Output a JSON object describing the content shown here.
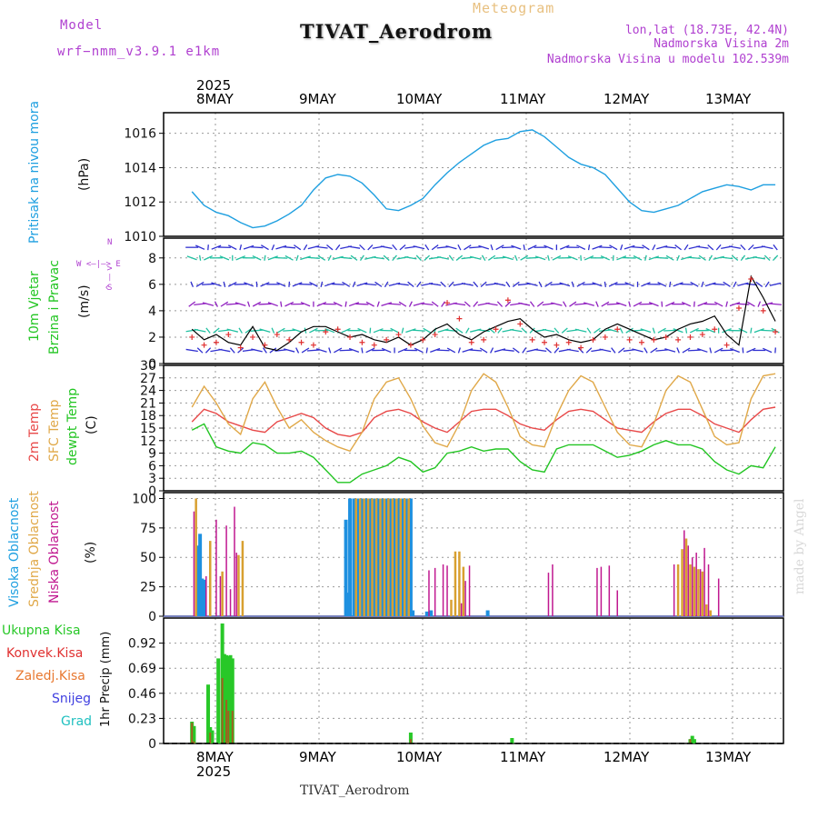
{
  "header": {
    "model_label": "Model",
    "model_name": "wrf−nmm_v3.9.1  e1km",
    "product": "Meteogram",
    "title": "TIVAT_Aerodrom",
    "lonlat": "lon,lat (18.73E, 42.4N)",
    "elev": "Nadmorska Visina 2m",
    "model_elev": "Nadmorska Visina u modelu 102.539m"
  },
  "x_axis": {
    "year": "2025",
    "days": [
      "8MAY",
      "9MAY",
      "10MAY",
      "11MAY",
      "12MAY",
      "13MAY"
    ]
  },
  "footer": {
    "station": "TIVAT_Aerodrom",
    "credit": "made by Angel"
  },
  "panel_labels": {
    "pressure": {
      "name": "Pritisak na nivou mora",
      "unit": "(hPa)"
    },
    "wind": {
      "name1": "10m Vjetar",
      "name2": "Brzina i Pravac",
      "unit": "(m/s)",
      "compass": "W <—|—> E",
      "n": "N",
      "s": "S",
      "arrows": "^ — v"
    },
    "temp": {
      "name1": "2m Temp",
      "name2": "SFC Temp",
      "name3": "dewpt Temp",
      "unit": "(C)"
    },
    "cloud": {
      "name1": "Visoka Oblacnost",
      "name2": "Srednja Oblacnost",
      "name3": "Niska Oblacnost",
      "unit": "(%)"
    },
    "precip": {
      "unit": "1hr Precip (mm)",
      "legend": [
        "Ukupna Kisa",
        "Konvek.Kisa",
        "Zaledj.Kisa",
        "Snijeg",
        "Grad"
      ]
    }
  },
  "colors": {
    "pressure": "#1e9fe0",
    "temp2m": "#e84848",
    "sfc": "#e0a848",
    "dewpt": "#22c522",
    "high": "#1e90e0",
    "mid": "#d8a030",
    "low": "#c01890",
    "rain": "#28c828",
    "konvek": "#e03030",
    "zaledj": "#e87830",
    "snijeg": "#4040e0",
    "grad": "#20c0c0"
  },
  "chart_data": [
    {
      "type": "line",
      "title": "",
      "ylabel": "Pritisak na nivou mora (hPa)",
      "ylim": [
        1010,
        1017.2
      ],
      "yticks": [
        1010,
        1012,
        1014,
        1016
      ],
      "x_hours": [
        0,
        3,
        6,
        9,
        12,
        15,
        18,
        21,
        24,
        27,
        30,
        33,
        36,
        39,
        42,
        45,
        48,
        51,
        54,
        57,
        60,
        63,
        66,
        69,
        72,
        75,
        78,
        81,
        84,
        87,
        90,
        93,
        96,
        99,
        102,
        105,
        108,
        111,
        114,
        117,
        120,
        123,
        126,
        129,
        132,
        135,
        138,
        141,
        144
      ],
      "series": [
        {
          "values": [
            1012.6,
            1011.8,
            1011.4,
            1011.2,
            1010.8,
            1010.5,
            1010.6,
            1010.9,
            1011.3,
            1011.8,
            1012.7,
            1013.4,
            1013.6,
            1013.5,
            1013.1,
            1012.4,
            1011.6,
            1011.5,
            1011.8,
            1012.2,
            1013.0,
            1013.7,
            1014.3,
            1014.8,
            1015.3,
            1015.6,
            1015.7,
            1016.1,
            1016.2,
            1015.8,
            1015.2,
            1014.6,
            1014.2,
            1014.0,
            1013.6,
            1012.8,
            1012.0,
            1011.5,
            1011.4,
            1011.6,
            1011.8,
            1012.2,
            1012.6,
            1012.8,
            1013.0,
            1012.9,
            1012.7,
            1013.0,
            1013.0
          ]
        }
      ]
    },
    {
      "type": "line",
      "title": "",
      "ylabel": "10m Vjetar Brzina i Pravac (m/s)",
      "ylim": [
        0,
        9.5
      ],
      "yticks": [
        0,
        2,
        4,
        6,
        8
      ],
      "x_hours": [
        0,
        3,
        6,
        9,
        12,
        15,
        18,
        21,
        24,
        27,
        30,
        33,
        36,
        39,
        42,
        45,
        48,
        51,
        54,
        57,
        60,
        63,
        66,
        69,
        72,
        75,
        78,
        81,
        84,
        87,
        90,
        93,
        96,
        99,
        102,
        105,
        108,
        111,
        114,
        117,
        120,
        123,
        126,
        129,
        132,
        135,
        138,
        141,
        144
      ],
      "series": [
        {
          "values": [
            2.6,
            1.8,
            2.2,
            1.6,
            1.4,
            2.8,
            1.2,
            1.0,
            1.6,
            2.4,
            2.8,
            2.8,
            2.4,
            2.0,
            2.2,
            1.8,
            1.6,
            2.0,
            1.4,
            1.8,
            2.6,
            3.0,
            2.2,
            1.8,
            2.4,
            2.8,
            3.2,
            3.4,
            2.6,
            2.0,
            2.2,
            1.8,
            1.6,
            1.8,
            2.6,
            3.0,
            2.6,
            2.2,
            1.8,
            2.0,
            2.6,
            3.0,
            3.2,
            3.6,
            2.2,
            1.4,
            6.6,
            5.0,
            3.2
          ]
        },
        {
          "values": [
            2.0,
            1.4,
            1.6,
            2.2,
            1.2,
            2.0,
            1.4,
            2.2,
            1.8,
            1.6,
            1.4,
            2.4,
            2.6,
            2.0,
            1.6,
            1.4,
            1.8,
            2.2,
            1.4,
            1.8,
            2.2,
            4.6,
            3.4,
            1.6,
            1.8,
            2.6,
            4.8,
            3.0,
            1.8,
            1.6,
            1.4,
            1.6,
            1.2,
            1.8,
            2.0,
            2.6,
            1.8,
            1.6,
            1.8,
            2.0,
            1.8,
            2.0,
            2.2,
            2.6,
            1.4,
            4.2,
            6.4,
            4.0,
            2.4
          ]
        }
      ]
    },
    {
      "type": "line",
      "title": "",
      "ylabel": "(C)",
      "ylim": [
        0,
        30
      ],
      "yticks": [
        0,
        3,
        6,
        9,
        12,
        15,
        18,
        21,
        24,
        27,
        30
      ],
      "x_hours": [
        0,
        3,
        6,
        9,
        12,
        15,
        18,
        21,
        24,
        27,
        30,
        33,
        36,
        39,
        42,
        45,
        48,
        51,
        54,
        57,
        60,
        63,
        66,
        69,
        72,
        75,
        78,
        81,
        84,
        87,
        90,
        93,
        96,
        99,
        102,
        105,
        108,
        111,
        114,
        117,
        120,
        123,
        126,
        129,
        132,
        135,
        138,
        141,
        144
      ],
      "series": [
        {
          "name": "2m Temp",
          "values": [
            16.5,
            19.5,
            18.5,
            16.5,
            15.5,
            14.5,
            14.0,
            16.5,
            17.5,
            18.5,
            17.5,
            15.0,
            13.5,
            13.0,
            14.0,
            17.5,
            19.0,
            19.5,
            18.5,
            16.5,
            15.0,
            14.0,
            16.5,
            19.0,
            19.5,
            19.5,
            18.0,
            16.0,
            15.0,
            14.5,
            17.0,
            19.0,
            19.5,
            19.0,
            17.0,
            15.0,
            14.5,
            14.0,
            16.5,
            18.5,
            19.5,
            19.5,
            18.0,
            16.0,
            15.0,
            14.0,
            17.0,
            19.5,
            20.0
          ]
        },
        {
          "name": "SFC Temp",
          "values": [
            20.0,
            25.0,
            21.0,
            16.0,
            13.5,
            22.0,
            26.0,
            20.0,
            15.0,
            17.0,
            14.0,
            12.0,
            10.5,
            9.5,
            14.0,
            22.0,
            26.0,
            27.0,
            22.0,
            15.5,
            11.5,
            10.5,
            16.0,
            24.0,
            28.0,
            26.0,
            20.0,
            13.0,
            11.0,
            10.5,
            18.0,
            24.0,
            27.5,
            26.0,
            20.0,
            14.0,
            11.0,
            10.5,
            16.0,
            24.0,
            27.5,
            26.0,
            19.5,
            13.0,
            11.0,
            11.5,
            22.0,
            27.5,
            28.0
          ]
        },
        {
          "name": "dewpt Temp",
          "values": [
            14.5,
            16.0,
            10.5,
            9.5,
            9.0,
            11.5,
            11.0,
            9.0,
            9.0,
            9.5,
            8.0,
            5.0,
            2.0,
            2.0,
            4.0,
            5.0,
            6.0,
            8.0,
            7.0,
            4.5,
            5.5,
            9.0,
            9.5,
            10.5,
            9.5,
            10.0,
            10.0,
            7.0,
            5.0,
            4.5,
            10.0,
            11.0,
            11.0,
            11.0,
            9.5,
            8.0,
            8.5,
            9.5,
            11.0,
            12.0,
            11.0,
            11.0,
            10.0,
            7.0,
            5.0,
            4.0,
            6.0,
            5.5,
            10.5
          ]
        }
      ]
    },
    {
      "type": "bar",
      "title": "",
      "ylabel": "(%)",
      "ylim": [
        0,
        105
      ],
      "yticks": [
        0,
        25,
        50,
        75,
        100
      ],
      "series": [
        {
          "name": "Visoka Oblacnost",
          "bars": [
            [
              1.5,
              60
            ],
            [
              2,
              70
            ],
            [
              2.5,
              32
            ],
            [
              3,
              31
            ],
            [
              38,
              82
            ],
            [
              38.5,
              20
            ],
            [
              39,
              100
            ],
            [
              40,
              100
            ],
            [
              41,
              100
            ],
            [
              42,
              100
            ],
            [
              43,
              100
            ],
            [
              44,
              100
            ],
            [
              45,
              100
            ],
            [
              46,
              100
            ],
            [
              47,
              100
            ],
            [
              48,
              100
            ],
            [
              49,
              100
            ],
            [
              50,
              100
            ],
            [
              51,
              100
            ],
            [
              52,
              100
            ],
            [
              53,
              100
            ],
            [
              54,
              100
            ],
            [
              54.5,
              5
            ],
            [
              58,
              4
            ],
            [
              59,
              5
            ],
            [
              73,
              5
            ]
          ]
        },
        {
          "name": "Srednja Oblacnost",
          "bars": [
            [
              1,
              100
            ],
            [
              4.5,
              64
            ],
            [
              7.5,
              38
            ],
            [
              11.5,
              52
            ],
            [
              12.5,
              64
            ],
            [
              40.5,
              100
            ],
            [
              41.5,
              100
            ],
            [
              42.5,
              100
            ],
            [
              43.5,
              100
            ],
            [
              44.5,
              100
            ],
            [
              45.5,
              100
            ],
            [
              46.5,
              100
            ],
            [
              47.5,
              100
            ],
            [
              48.5,
              100
            ],
            [
              49.5,
              100
            ],
            [
              50.5,
              100
            ],
            [
              51.5,
              100
            ],
            [
              52.5,
              100
            ],
            [
              53.5,
              100
            ],
            [
              64,
              14
            ],
            [
              65,
              55
            ],
            [
              66,
              55
            ],
            [
              67,
              42
            ],
            [
              120,
              44
            ],
            [
              121,
              57
            ],
            [
              122,
              66
            ],
            [
              123,
              44
            ],
            [
              124,
              42
            ],
            [
              125,
              40
            ],
            [
              126,
              38
            ],
            [
              127,
              10
            ],
            [
              128,
              5
            ]
          ]
        },
        {
          "name": "Niska Oblacnost",
          "bars": [
            [
              0.5,
              89
            ],
            [
              3.5,
              34
            ],
            [
              6,
              82
            ],
            [
              7,
              34
            ],
            [
              8.5,
              77
            ],
            [
              9.5,
              23
            ],
            [
              10.5,
              93
            ],
            [
              11,
              54
            ],
            [
              58.5,
              39
            ],
            [
              60,
              41
            ],
            [
              62,
              44
            ],
            [
              63,
              43
            ],
            [
              66.5,
              11
            ],
            [
              67.5,
              30
            ],
            [
              68.5,
              43
            ],
            [
              88,
              37
            ],
            [
              89,
              44
            ],
            [
              100,
              41
            ],
            [
              101,
              42
            ],
            [
              103,
              43
            ],
            [
              105,
              22
            ],
            [
              119,
              44
            ],
            [
              121.5,
              73
            ],
            [
              122.5,
              60
            ],
            [
              123.5,
              50
            ],
            [
              124.5,
              54
            ],
            [
              125.5,
              40
            ],
            [
              126.5,
              58
            ],
            [
              127.5,
              44
            ],
            [
              130,
              32
            ]
          ]
        }
      ]
    },
    {
      "type": "bar",
      "title": "",
      "ylabel": "1hr Precip (mm)",
      "ylim": [
        0,
        1.15
      ],
      "yticks": [
        0,
        0.23,
        0.46,
        0.69,
        0.92
      ],
      "series": [
        {
          "name": "Ukupna Kisa",
          "bars": [
            [
              0,
              0.2
            ],
            [
              0.5,
              0.16
            ],
            [
              4,
              0.54
            ],
            [
              4.5,
              0.15
            ],
            [
              5,
              0.12
            ],
            [
              6.5,
              0.78
            ],
            [
              7,
              0.01
            ],
            [
              7.5,
              1.1
            ],
            [
              8,
              0.82
            ],
            [
              8.5,
              0.81
            ],
            [
              9,
              0.8
            ],
            [
              9.5,
              0.81
            ],
            [
              10,
              0.78
            ],
            [
              54,
              0.1
            ],
            [
              79,
              0.05
            ],
            [
              123,
              0.04
            ],
            [
              123.5,
              0.07
            ],
            [
              124,
              0.04
            ]
          ]
        },
        {
          "name": "Konvek.Kisa",
          "bars": [
            [
              0,
              0.19
            ],
            [
              0.5,
              0.02
            ],
            [
              4.5,
              0.1
            ],
            [
              7.5,
              0.6
            ],
            [
              8.5,
              0.4
            ],
            [
              9,
              0.3
            ],
            [
              10,
              0.3
            ],
            [
              54,
              0.04
            ],
            [
              123,
              0.04
            ]
          ]
        }
      ]
    }
  ]
}
